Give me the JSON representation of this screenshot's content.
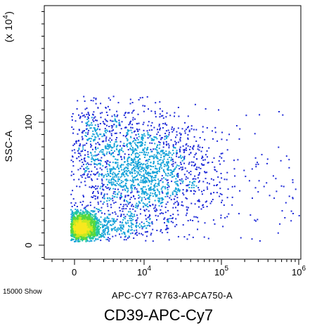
{
  "chart_data": {
    "type": "scatter",
    "subtype": "flow-cytometry-density-dot-plot",
    "title": "",
    "caption": "CD39-APC-Cy7",
    "xlabel": "APC-CY7 R763-APCA750-A",
    "ylabel": "SSC-A",
    "y_multiplier": "(x 10",
    "y_multiplier_exp": "4",
    "y_multiplier_close": ")",
    "event_count_label": "15000 Show",
    "x_scale": "biexponential",
    "x_range": [
      -1000,
      1000000
    ],
    "x_ticks": [
      {
        "value": 0,
        "base": "0",
        "exp": ""
      },
      {
        "value": 10000,
        "base": "10",
        "exp": "4"
      },
      {
        "value": 100000,
        "base": "10",
        "exp": "5"
      },
      {
        "value": 1000000,
        "base": "10",
        "exp": "6"
      }
    ],
    "y_scale": "linear",
    "y_units": "x 10^4",
    "y_range": [
      -8,
      190
    ],
    "y_ticks": [
      {
        "value": 0,
        "label": "0"
      },
      {
        "value": 100,
        "label": "100"
      }
    ],
    "grid": false,
    "legend": "none",
    "colormap": [
      "#1e2ad8",
      "#17a3d9",
      "#22c8a0",
      "#58d83c",
      "#c8e81e",
      "#f8e81e"
    ],
    "populations": [
      {
        "name_shown": "",
        "x_center": 200,
        "y_center": 15,
        "x_spread_decades": 0.35,
        "y_spread": 6,
        "share": 0.34
      },
      {
        "name_shown": "",
        "x_center": 1800,
        "y_center": 15,
        "x_spread_decades": 0.45,
        "y_spread": 6,
        "share": 0.16
      },
      {
        "name_shown": "",
        "x_center": 9000,
        "y_center": 60,
        "x_spread_decades": 0.42,
        "y_spread": 22,
        "share": 0.37
      },
      {
        "name_shown": "",
        "x_center": 3000,
        "y_center": 90,
        "x_spread_decades": 0.5,
        "y_spread": 18,
        "share": 0.09
      },
      {
        "name_shown": "",
        "x_center": 150000,
        "y_center": 45,
        "x_spread_decades": 0.6,
        "y_spread": 30,
        "share": 0.04
      }
    ]
  }
}
